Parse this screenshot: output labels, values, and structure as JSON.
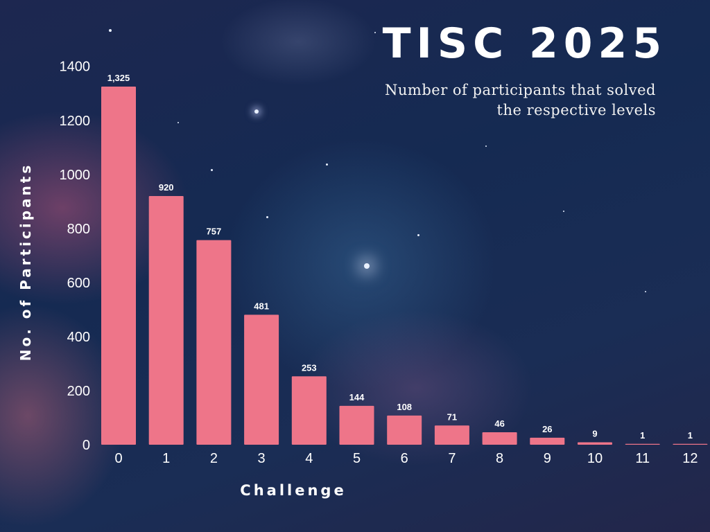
{
  "colors": {
    "bar": "#ee7589",
    "text": "#ffffff"
  },
  "chart_data": {
    "type": "bar",
    "title": "TISC 2025",
    "subtitle": "Number of participants that solved the respective levels",
    "xlabel": "Challenge",
    "ylabel": "No. of Participants",
    "categories": [
      "0",
      "1",
      "2",
      "3",
      "4",
      "5",
      "6",
      "7",
      "8",
      "9",
      "10",
      "11",
      "12"
    ],
    "values": [
      1325,
      920,
      757,
      481,
      253,
      144,
      108,
      71,
      46,
      26,
      9,
      1,
      1
    ],
    "value_labels": [
      "1,325",
      "920",
      "757",
      "481",
      "253",
      "144",
      "108",
      "71",
      "46",
      "26",
      "9",
      "1",
      "1"
    ],
    "ylim": [
      0,
      1400
    ],
    "yticks": [
      "0",
      "200",
      "400",
      "600",
      "800",
      "1000",
      "1200",
      "1400"
    ],
    "grid": false,
    "legend": "none"
  }
}
